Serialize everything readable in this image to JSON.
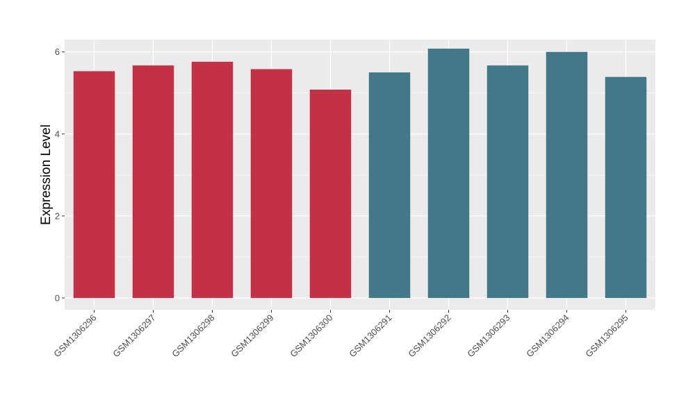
{
  "chart_data": {
    "type": "bar",
    "title": "",
    "xlabel": "",
    "ylabel": "Expression Level",
    "categories": [
      "GSM1306296",
      "GSM1306297",
      "GSM1306298",
      "GSM1306299",
      "GSM1306300",
      "GSM1306291",
      "GSM1306292",
      "GSM1306293",
      "GSM1306294",
      "GSM1306295"
    ],
    "values": [
      5.53,
      5.67,
      5.76,
      5.58,
      5.08,
      5.5,
      6.08,
      5.67,
      6.0,
      5.39
    ],
    "bar_colors": [
      "#c33147",
      "#c33147",
      "#c33147",
      "#c33147",
      "#c33147",
      "#437889",
      "#437889",
      "#437889",
      "#437889",
      "#437889"
    ],
    "ylim": [
      -0.29,
      6.3
    ],
    "yticks": [
      0,
      2,
      4,
      6
    ],
    "grid": true,
    "legend": "none",
    "panel_background": "#ebebeb",
    "grid_color": "#ffffff"
  }
}
